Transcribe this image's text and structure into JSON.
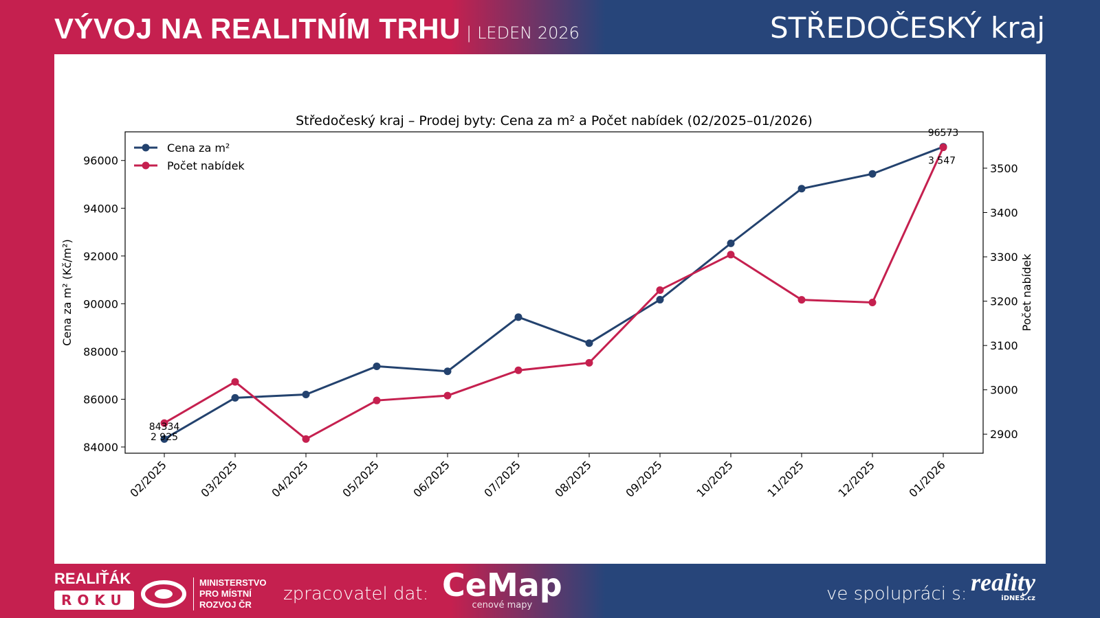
{
  "header": {
    "title": "VÝVOJ NA REALITNÍM TRHU",
    "separator": "|",
    "subtitle": "LEDEN 2026",
    "region": "STŘEDOČESKÝ kraj"
  },
  "footer": {
    "realitak_line1": "REALIŤÁK",
    "realitak_line2": "ROKU",
    "ministry_line1": "MINISTERSTVO",
    "ministry_line2": "PRO MÍSTNÍ",
    "ministry_line3": "ROZVOJ ČR",
    "processor_label": "zpracovatel dat:",
    "cemap_logo": "CeMap",
    "cemap_tagline": "cenové mapy",
    "partner_label": "ve spolupráci s:",
    "reality_logo": "reality",
    "reality_tagline": "iDNES.cz"
  },
  "colors": {
    "price": "#23426e",
    "count": "#c5204f",
    "left_bg": "#c5204f",
    "right_bg": "#27457a"
  },
  "chart_data": {
    "type": "line",
    "title": "Středočeský kraj – Prodej byty: Cena za m² a Počet nabídek (02/2025–01/2026)",
    "categories": [
      "02/2025",
      "03/2025",
      "04/2025",
      "05/2025",
      "06/2025",
      "07/2025",
      "08/2025",
      "09/2025",
      "10/2025",
      "11/2025",
      "12/2025",
      "01/2026"
    ],
    "ylabel": "Cena za m² (Kč/m²)",
    "y2label": "Počet nabídek",
    "ylim": [
      83740,
      97200
    ],
    "y2lim": [
      2857,
      3582
    ],
    "yticks": [
      84000,
      86000,
      88000,
      90000,
      92000,
      94000,
      96000
    ],
    "y2ticks": [
      2900,
      3000,
      3100,
      3200,
      3300,
      3400,
      3500
    ],
    "legend": "top-left",
    "grid": false,
    "series": [
      {
        "name": "Cena za m²",
        "axis": "left",
        "color": "#23426e",
        "values": [
          84334,
          86060,
          86200,
          87380,
          87170,
          89440,
          88350,
          90170,
          92530,
          94820,
          95440,
          96573
        ]
      },
      {
        "name": "Počet nabídek",
        "axis": "right",
        "color": "#c5204f",
        "values": [
          2925,
          3018,
          2889,
          2976,
          2987,
          3044,
          3061,
          3225,
          3305,
          3203,
          3197,
          3547
        ]
      }
    ],
    "annotations": [
      {
        "text": "84334",
        "category": "02/2025",
        "series": "Cena za m²"
      },
      {
        "text": "2 925",
        "category": "02/2025",
        "series": "Počet nabídek"
      },
      {
        "text": "96573",
        "category": "01/2026",
        "series": "Cena za m²"
      },
      {
        "text": "3 547",
        "category": "01/2026",
        "series": "Počet nabídek"
      }
    ]
  }
}
